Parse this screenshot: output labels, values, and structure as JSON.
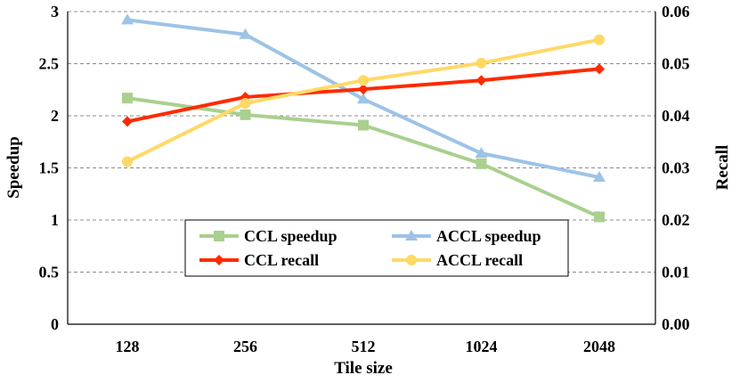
{
  "chart_data": {
    "type": "line",
    "title": "",
    "xlabel": "Tile size",
    "ylabel": "Speedup",
    "y2label": "Recall",
    "categories": [
      "128",
      "256",
      "512",
      "1024",
      "2048"
    ],
    "ylim": [
      0,
      3
    ],
    "y2lim": [
      0,
      0.06
    ],
    "yticks": [
      "0",
      "0.5",
      "1",
      "1.5",
      "2",
      "2.5",
      "3"
    ],
    "y2ticks": [
      "0.00",
      "0.01",
      "0.02",
      "0.03",
      "0.04",
      "0.05",
      "0.06"
    ],
    "grid": true,
    "legend_position": "bottom-center",
    "series": [
      {
        "name": "CCL speedup",
        "axis": "left",
        "values": [
          2.17,
          2.01,
          1.91,
          1.54,
          1.03
        ],
        "color": "#a9d08e",
        "marker": "square"
      },
      {
        "name": "ACCL speedup",
        "axis": "left",
        "values": [
          2.92,
          2.78,
          2.16,
          1.64,
          1.41
        ],
        "color": "#9dc3e6",
        "marker": "triangle"
      },
      {
        "name": "CCL recall",
        "axis": "right",
        "values": [
          0.0389,
          0.0436,
          0.0451,
          0.0468,
          0.049
        ],
        "color": "#ff2a00",
        "marker": "diamond"
      },
      {
        "name": "ACCL recall",
        "axis": "right",
        "values": [
          0.0312,
          0.0424,
          0.0468,
          0.0501,
          0.0546
        ],
        "color": "#ffd966",
        "marker": "circle"
      }
    ]
  }
}
